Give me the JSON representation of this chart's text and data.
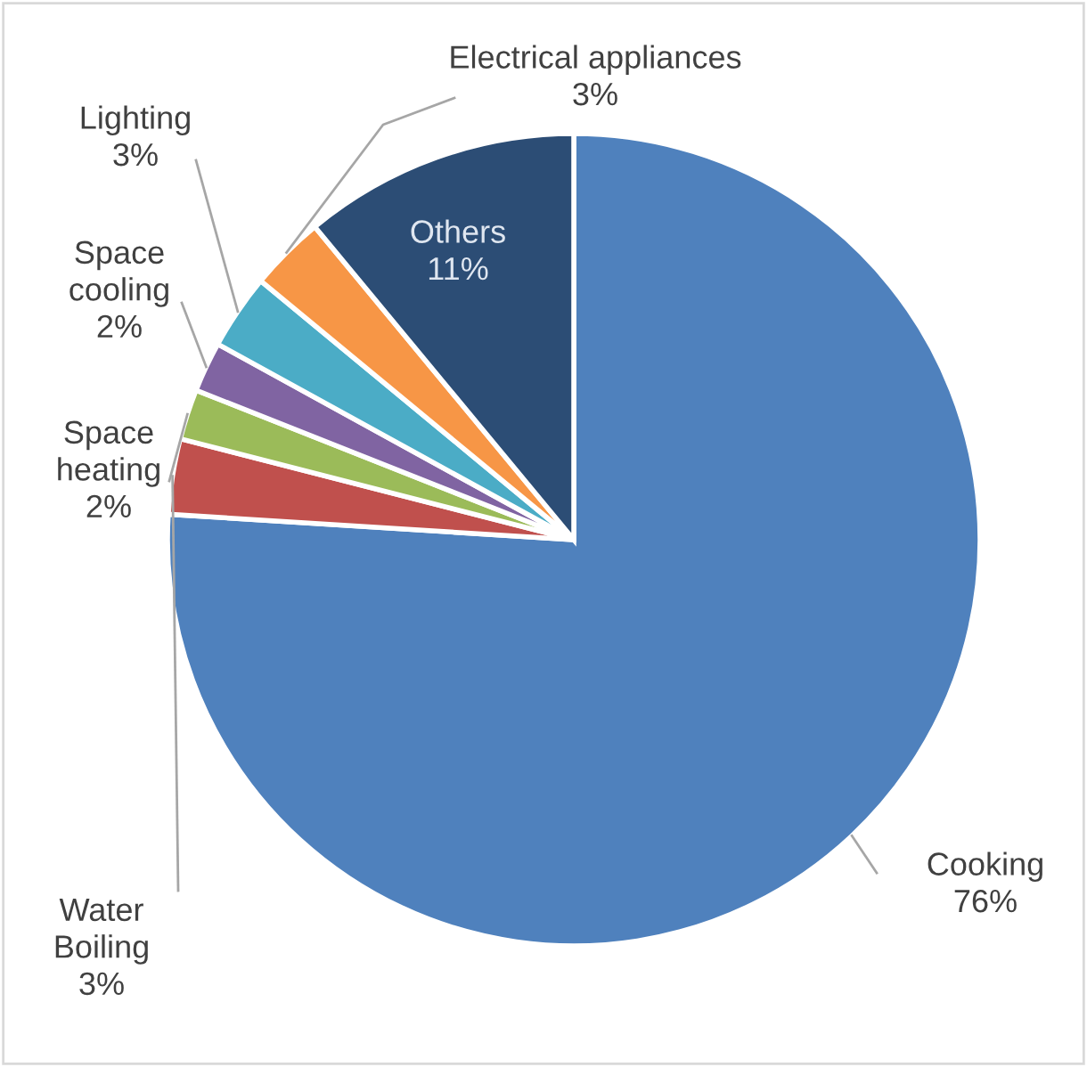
{
  "chart_data": {
    "type": "pie",
    "categories": [
      "Cooking",
      "Water Boiling",
      "Space heating",
      "Space cooling",
      "Lighting",
      "Electrical appliances",
      "Others"
    ],
    "values": [
      76,
      3,
      2,
      2,
      3,
      3,
      11
    ],
    "value_labels": [
      "76%",
      "3%",
      "2%",
      "2%",
      "3%",
      "3%",
      "11%"
    ],
    "colors": [
      "#4f81bd",
      "#c0504d",
      "#9bbb59",
      "#8064a2",
      "#4bacc6",
      "#f79646",
      "#2c4d75"
    ],
    "legend": false
  }
}
